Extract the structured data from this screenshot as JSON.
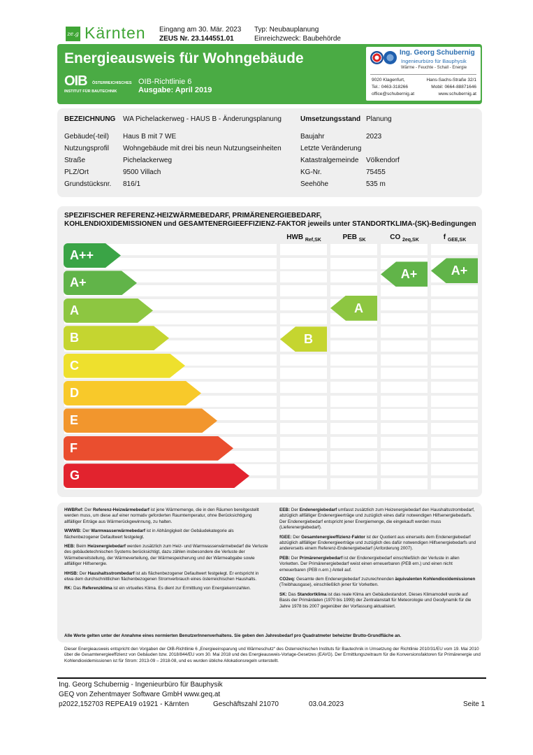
{
  "header": {
    "logo_text": "Kärnten",
    "logo_mark": "ze.g",
    "received": "Eingang am 30. Mär. 2023",
    "zeus": "ZEUS Nr. 23.144551.01",
    "type": "Typ: Neubauplanung",
    "purpose": "Einreichzweck: Baubehörde"
  },
  "banner": {
    "title": "Energieausweis für Wohngebäude",
    "oib_logo": "OIB",
    "oib_name_1": "ÖSTERREICHISCHES",
    "oib_name_2": "INSTITUT FÜR BAUTECHNIK",
    "guideline": "OIB-Richtlinie 6",
    "edition": "Ausgabe: April 2019",
    "firm": {
      "name": "Ing. Georg Schubernig",
      "subtitle": "Ingenieurbüro für Bauphysik",
      "services": "Wärme - Feuchte - Schall - Energie",
      "city": "9020 Klagenfurt,",
      "street": "Hans-Sachs-Straße 32/1",
      "tel": "Tel.: 0463-318266",
      "mobile": "Mobil: 0664-88871646",
      "email": "office@schubernig.at",
      "web": "www.schubernig.at"
    }
  },
  "info": {
    "left": [
      {
        "label": "BEZEICHNUNG",
        "value": "WA Pichelackerweg - HAUS B - Änderungsplanung"
      },
      {
        "label": "Gebäude(-teil)",
        "value": "Haus B mit 7 WE"
      },
      {
        "label": "Nutzungsprofil",
        "value": "Wohngebäude mit drei bis neun Nutzungseinheiten"
      },
      {
        "label": "Straße",
        "value": "Pichelackerweg"
      },
      {
        "label": "PLZ/Ort",
        "value": "9500 Villach"
      },
      {
        "label": "Grundstücksnr.",
        "value": "816/1"
      }
    ],
    "right": [
      {
        "label": "Umsetzungsstand",
        "value": "Planung"
      },
      {
        "label": "Baujahr",
        "value": "2023"
      },
      {
        "label": "Letzte Veränderung",
        "value": ""
      },
      {
        "label": "Katastralgemeinde",
        "value": "Völkendorf"
      },
      {
        "label": "KG-Nr.",
        "value": "75455"
      },
      {
        "label": "Seehöhe",
        "value": "535 m"
      }
    ]
  },
  "scale": {
    "title_1": "SPEZIFISCHER REFERENZ-HEIZWÄRMEBEDARF, PRIMÄRENERGIEBEDARF,",
    "title_2": "KOHLENDIOXIDEMISSIONEN und GESAMTENERGIEEFFIZIENZ-FAKTOR jeweils unter STANDORTKLIMA-(SK)-Bedingungen",
    "columns": [
      {
        "main": "HWB",
        "sub": "Ref,SK"
      },
      {
        "main": "PEB",
        "sub": "SK"
      },
      {
        "main": "CO",
        "sub": "2eq,SK"
      },
      {
        "main": "f",
        "sub": "GEE,SK"
      }
    ],
    "grades": [
      {
        "label": "A++",
        "color": "#3aa446"
      },
      {
        "label": "A+",
        "color": "#61b449"
      },
      {
        "label": "A",
        "color": "#8dc641"
      },
      {
        "label": "B",
        "color": "#c5d530"
      },
      {
        "label": "C",
        "color": "#eee02d"
      },
      {
        "label": "D",
        "color": "#f8c92a"
      },
      {
        "label": "E",
        "color": "#f2962d"
      },
      {
        "label": "F",
        "color": "#ea4e2f"
      },
      {
        "label": "G",
        "color": "#e2232e"
      }
    ],
    "ratings": [
      {
        "column": "HWB Ref,SK",
        "grade": "B",
        "color": "#c5d530"
      },
      {
        "column": "PEB SK",
        "grade": "A",
        "color": "#8dc641"
      },
      {
        "column": "CO2eq,SK",
        "grade": "A+",
        "color": "#61b449"
      },
      {
        "column": "fGEE,SK",
        "grade": "A+",
        "color": "#61b449"
      }
    ]
  },
  "notes": {
    "left": [
      {
        "term": "HWBRef:",
        "bold": "Referenz-Heizwärmebedarf",
        "pre": "Der ",
        "text": " ist jene Wärmemenge, die in den Räumen bereitgestellt werden muss, um diese auf einer normativ geforderten Raumtemperatur, ohne Berücksichtigung allfälliger Erträge aus Wärmerückgewinnung, zu halten."
      },
      {
        "term": "WWWB:",
        "bold": "Warmwasserwärmebedarf",
        "pre": "Der ",
        "text": " ist in Abhängigkeit der Gebäudekategorie als flächenbezogener Defaultwert festgelegt."
      },
      {
        "term": "HEB:",
        "bold": "Heizenergiebedarf",
        "pre": "Beim ",
        "text": " werden zusätzlich zum Heiz- und Warmwasserwärmebedarf die Verluste des gebäudetechnischen Systems berücksichtigt, dazu zählen insbesondere die Verluste der Wärmebereitstellung, der Wärmeverteilung, der Wärmespeicherung und der Wärmeabgabe sowie allfälliger Hilfsenergie."
      },
      {
        "term": "HHSB:",
        "bold": "Haushaltsstrombedarf",
        "pre": "Der ",
        "text": " ist als flächenbezogener Defaultwert festgelegt. Er entspricht in etwa dem durchschnittlichen flächenbezogenen Stromverbrauch eines österreichischen Haushalts."
      },
      {
        "term": "RK:",
        "bold": "Referenzklima",
        "pre": "Das ",
        "text": " ist ein virtuelles Klima. Es dient zur Ermittlung von Energiekennzahlen."
      }
    ],
    "right": [
      {
        "term": "EEB:",
        "bold": "Endenergiebedarf",
        "pre": "Der ",
        "text": " umfasst zusätzlich zum Heizenergiebedarf den Haushaltsstrombedarf, abzüglich allfälliger Endenergieerträge und zuzüglich eines dafür notwendigen Hilfsenergiebedarfs. Der Endenergiebedarf entspricht jener Energiemenge, die eingekauft werden muss (Lieferenergiebedarf)."
      },
      {
        "term": "fGEE:",
        "bold": "Gesamtenergieeffizienz-Faktor",
        "pre": "Der ",
        "text": " ist der Quotient aus einerseits dem Endenergiebedarf abzüglich allfälliger Endenergieerträge und zuzüglich des dafür notwendigen Hilfsenergiebedarfs und andererseits einem Referenz-Endenergiebedarf (Anforderung 2007)."
      },
      {
        "term": "PEB:",
        "bold": "Primärenergiebedarf",
        "pre": "Der ",
        "text": " ist der Endenergiebedarf einschließlich der Verluste in allen Vorketten. Der Primärenergiebedarf weist einen erneuerbaren (PEB ern.) und einen nicht erneuerbaren (PEB n.ern.) Anteil auf."
      },
      {
        "term": "CO2eq:",
        "bold": "äquivalenten Kohlendioxidemissionen",
        "pre": "Gesamte dem Endenergiebedarf zuzurechnenden ",
        "text": " (Treibhausgase), einschließlich jener für Vorketten."
      },
      {
        "term": "SK:",
        "bold": "Standortklima",
        "pre": "Das ",
        "text": " ist das reale Klima am Gebäudestandort. Dieses Klimamodell wurde auf Basis der Primärdaten (1970 bis 1999) der Zentralanstalt für Meteorologie und Geodynamik für die Jahre 1978 bis 2007 gegenüber der Vorfassung aktualisiert."
      }
    ],
    "summary": "Alle Werte gelten unter der Annahme eines normierten BenutzerInnenverhaltens. Sie geben den Jahresbedarf pro Quadratmeter beheizter Brutto-Grundfläche an."
  },
  "disclaimer": "Dieser Energieausweis entspricht den Vorgaben der OIB-Richtlinie 6 „Energieeinsparung und Wärmeschutz“ des Österreichischen Instituts für Bautechnik in Umsetzung der Richtlinie 2010/31/EU vom 19. Mai 2010 über die Gesamtenergieeffizienz von Gebäuden bzw. 2018/844/EU vom 30. Mai 2018 und des Energieausweis-Vorlage-Gesetzes (EAVG). Der Ermittlungszeitraum für die Konversionsfaktoren für Primärenergie und Kohlendioxidemissionen ist für Strom: 2013-09 – 2018-08, und es wurden übliche Allokationsregeln unterstellt.",
  "footer": {
    "line1": "Ing. Georg Schubernig - Ingenieurbüro für Bauphysik",
    "line2": "GEQ von Zehentmayer Software GmbH www.geq.at",
    "software": "p2022,152703 REPEA19 o1921 - Kärnten",
    "case_no": "Geschäftszahl 21070",
    "date": "03.04.2023",
    "page": "Seite 1"
  }
}
